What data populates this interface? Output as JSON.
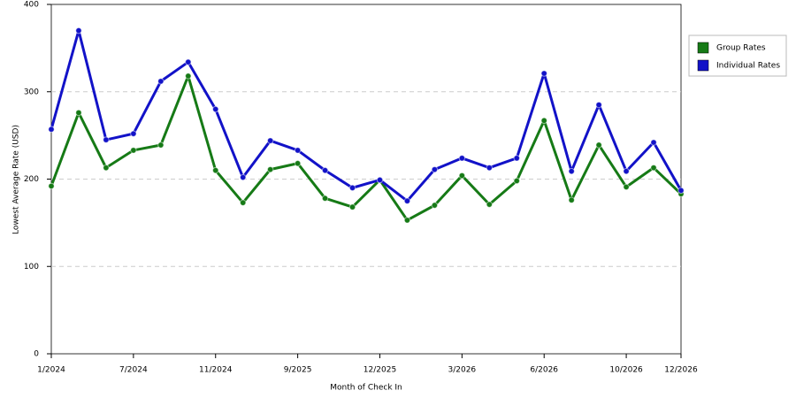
{
  "chart_data": {
    "type": "line",
    "x_label": "Month of Check In",
    "y_label": "Lowest Average Rate (USD)",
    "categories": [
      "1/2024",
      null,
      null,
      "7/2024",
      null,
      null,
      "11/2024",
      null,
      null,
      "9/2025",
      null,
      null,
      "12/2025",
      null,
      null,
      "3/2026",
      null,
      null,
      "6/2026",
      null,
      null,
      "10/2026",
      null,
      "12/2026"
    ],
    "series": [
      {
        "name": "Group Rates",
        "color": "#167a16",
        "values": [
          192,
          276,
          213,
          233,
          239,
          318,
          210,
          173,
          211,
          218,
          178,
          168,
          199,
          153,
          170,
          204,
          171,
          198,
          267,
          176,
          239,
          191,
          213,
          183
        ]
      },
      {
        "name": "Individual Rates",
        "color": "#1212c8",
        "values": [
          257,
          370,
          245,
          252,
          312,
          334,
          280,
          202,
          244,
          233,
          210,
          190,
          199,
          175,
          211,
          224,
          213,
          224,
          321,
          209,
          285,
          209,
          242,
          187
        ]
      }
    ],
    "ylim": [
      0,
      400
    ],
    "yticks": [
      0,
      100,
      200,
      300,
      400
    ],
    "grid": true,
    "legend": "right"
  }
}
